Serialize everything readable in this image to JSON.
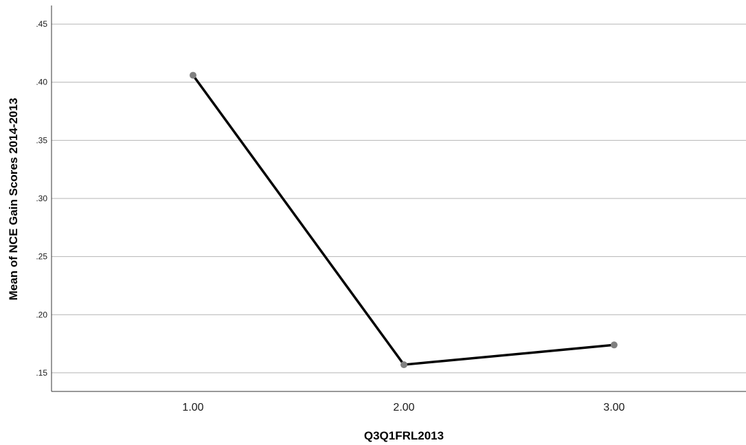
{
  "chart_data": {
    "type": "line",
    "title": "",
    "xlabel": "Q3Q1FRL2013",
    "ylabel": "Mean of NCE Gain Scores 2014-2013",
    "categories": [
      "1.00",
      "2.00",
      "3.00"
    ],
    "series": [
      {
        "values": [
          0.406,
          0.157,
          0.174
        ]
      }
    ],
    "ylim": [
      0.134,
      0.466
    ],
    "yticks": [
      0.15,
      0.2,
      0.25,
      0.3,
      0.35,
      0.4,
      0.45
    ],
    "ytick_labels": [
      ".15",
      ".20",
      ".25",
      ".30",
      ".35",
      ".40",
      ".45"
    ],
    "grid": true,
    "legend": "none",
    "colors": {
      "line": "#000000",
      "marker": "#808080",
      "grid": "#b4b4b4"
    }
  }
}
